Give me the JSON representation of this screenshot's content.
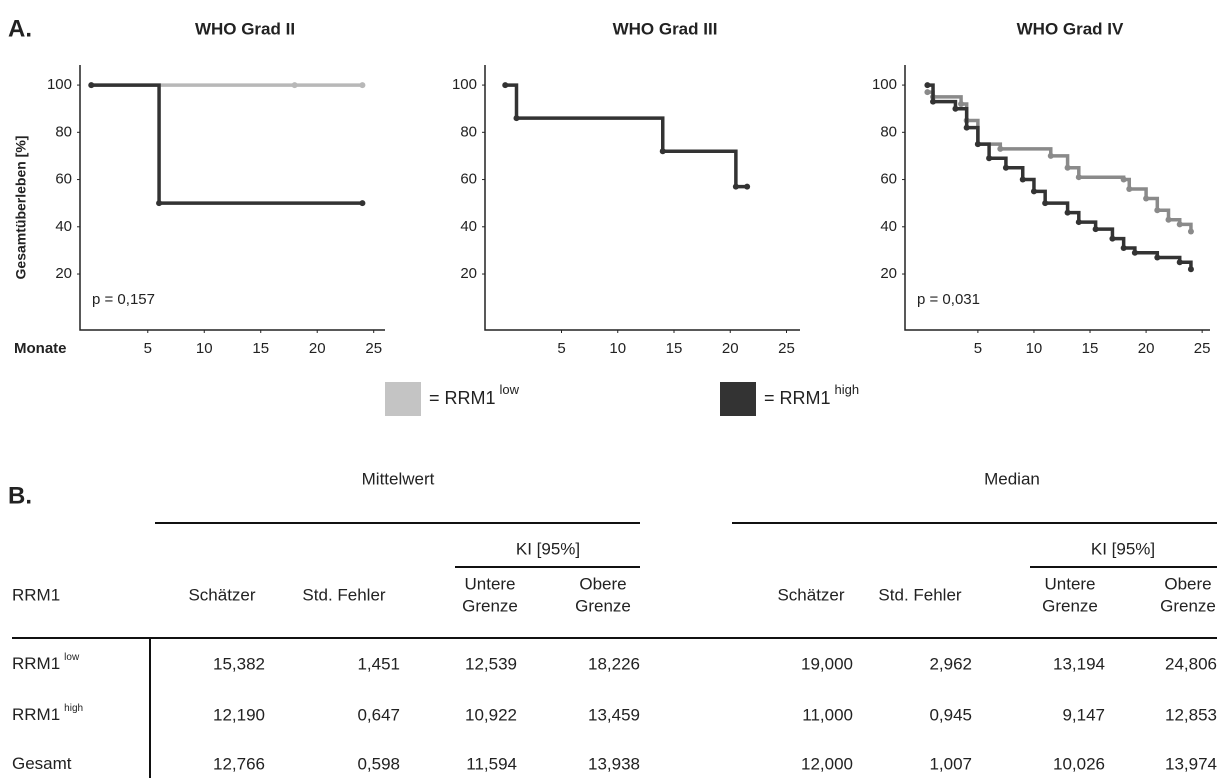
{
  "panel_a": "A.",
  "chart_data": [
    {
      "type": "step",
      "title": "WHO Grad II",
      "ylabel": "Gesamtüberleben [%]",
      "xlabel": "Monate",
      "annotation": "p = 0,157",
      "xlim": [
        -1,
        26
      ],
      "ylim": [
        -3.7,
        108.5
      ],
      "xticks": [
        5,
        10,
        15,
        20,
        25
      ],
      "yticks": [
        20,
        40,
        60,
        80,
        100
      ],
      "series": [
        {
          "color": "#b8b8b8",
          "x": [
            0,
            18,
            24
          ],
          "values": [
            100,
            100,
            100
          ]
        },
        {
          "color": "#333333",
          "x": [
            0,
            6,
            24
          ],
          "values": [
            100,
            50,
            50
          ]
        }
      ]
    },
    {
      "type": "step",
      "title": "WHO Grad III",
      "xlim": [
        -1.8,
        26.2
      ],
      "ylim": [
        -3.7,
        108.5
      ],
      "xticks": [
        5,
        10,
        15,
        20,
        25
      ],
      "yticks": [
        20,
        40,
        60,
        80,
        100
      ],
      "series": [
        {
          "color": "#333333",
          "x": [
            0,
            1,
            14,
            20.5,
            21.5
          ],
          "values": [
            100,
            86,
            72,
            57,
            57
          ]
        }
      ]
    },
    {
      "type": "step",
      "title": "WHO Grad IV",
      "annotation": "p = 0,031",
      "xlim": [
        -1.5,
        25.7
      ],
      "ylim": [
        -3.7,
        108.5
      ],
      "xticks": [
        5,
        10,
        15,
        20,
        25
      ],
      "yticks": [
        20,
        40,
        60,
        80,
        100
      ],
      "series": [
        {
          "color": "#8a8a8a",
          "x": [
            0.5,
            1,
            3.5,
            4,
            5,
            7,
            11.5,
            13,
            14,
            18,
            18.5,
            20,
            21,
            22,
            23,
            24
          ],
          "values": [
            97,
            95,
            92,
            85,
            75,
            73,
            70,
            65,
            61,
            60,
            56,
            52,
            47,
            43,
            41,
            38
          ]
        },
        {
          "color": "#333333",
          "x": [
            0.5,
            1,
            3,
            4,
            5,
            6,
            7.5,
            9,
            10,
            11,
            13,
            14,
            15.5,
            17,
            18,
            19,
            21,
            23,
            24
          ],
          "values": [
            100,
            93,
            90,
            82,
            75,
            69,
            65,
            60,
            55,
            50,
            46,
            42,
            39,
            35,
            31,
            29,
            27,
            25,
            22
          ]
        }
      ]
    }
  ],
  "legend": [
    {
      "text": "= RRM1",
      "sup": "low",
      "color": "#c4c4c4"
    },
    {
      "text": "= RRM1",
      "sup": "high",
      "color": "#333333"
    }
  ],
  "panel_b": "B.",
  "table": {
    "groups": [
      "Mittelwert",
      "Median"
    ],
    "ci": [
      "KI [95%]",
      "KI [95%]"
    ],
    "columns": [
      [
        "RRM1"
      ],
      [
        "Schätzer"
      ],
      [
        "Std. Fehler"
      ],
      [
        "Untere",
        "Grenze"
      ],
      [
        "Obere",
        "Grenze"
      ],
      [
        "Schätzer"
      ],
      [
        "Std. Fehler"
      ],
      [
        "Untere",
        "Grenze"
      ],
      [
        "Obere",
        "Grenze"
      ]
    ],
    "rows": [
      {
        "label": "RRM1",
        "sup": "low",
        "values": [
          "15,382",
          "1,451",
          "12,539",
          "18,226",
          "19,000",
          "2,962",
          "13,194",
          "24,806"
        ]
      },
      {
        "label": "RRM1",
        "sup": "high",
        "values": [
          "12,190",
          "0,647",
          "10,922",
          "13,459",
          "11,000",
          "0,945",
          "9,147",
          "12,853"
        ]
      },
      {
        "label": "Gesamt",
        "values": [
          "12,766",
          "0,598",
          "11,594",
          "13,938",
          "12,000",
          "1,007",
          "10,026",
          "13,974"
        ]
      }
    ]
  }
}
